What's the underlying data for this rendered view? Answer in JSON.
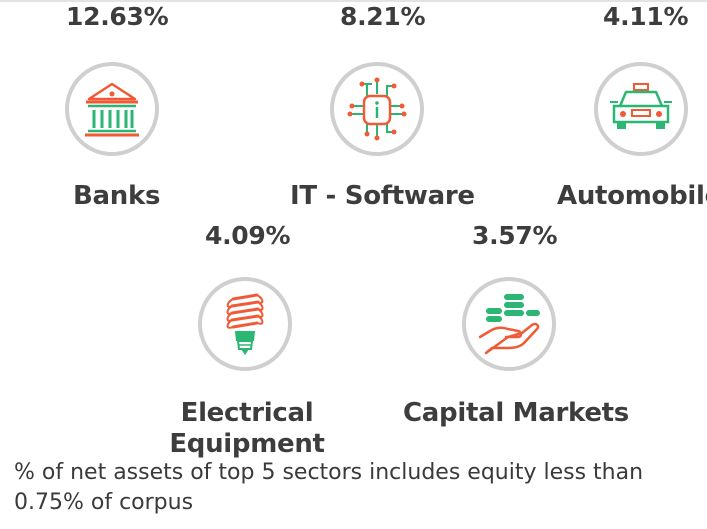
{
  "sectors": [
    {
      "percent": "12.63%",
      "name": "Banks",
      "icon": "bank-icon"
    },
    {
      "percent": "8.21%",
      "name": "IT - Software",
      "icon": "chip-icon"
    },
    {
      "percent": "4.11%",
      "name": "Automobile",
      "icon": "car-icon"
    },
    {
      "percent": "4.09%",
      "name_line1": "Electrical",
      "name_line2": "Equipment",
      "icon": "bulb-icon"
    },
    {
      "percent": "3.57%",
      "name": "Capital Markets",
      "icon": "coins-hand-icon"
    }
  ],
  "footnote": "% of net assets of top 5 sectors includes equity less than 0.75% of corpus",
  "colors": {
    "green": "#2bb673",
    "orange": "#f05a36",
    "circle": "#cfcfcf",
    "text": "#3d3d3d"
  }
}
